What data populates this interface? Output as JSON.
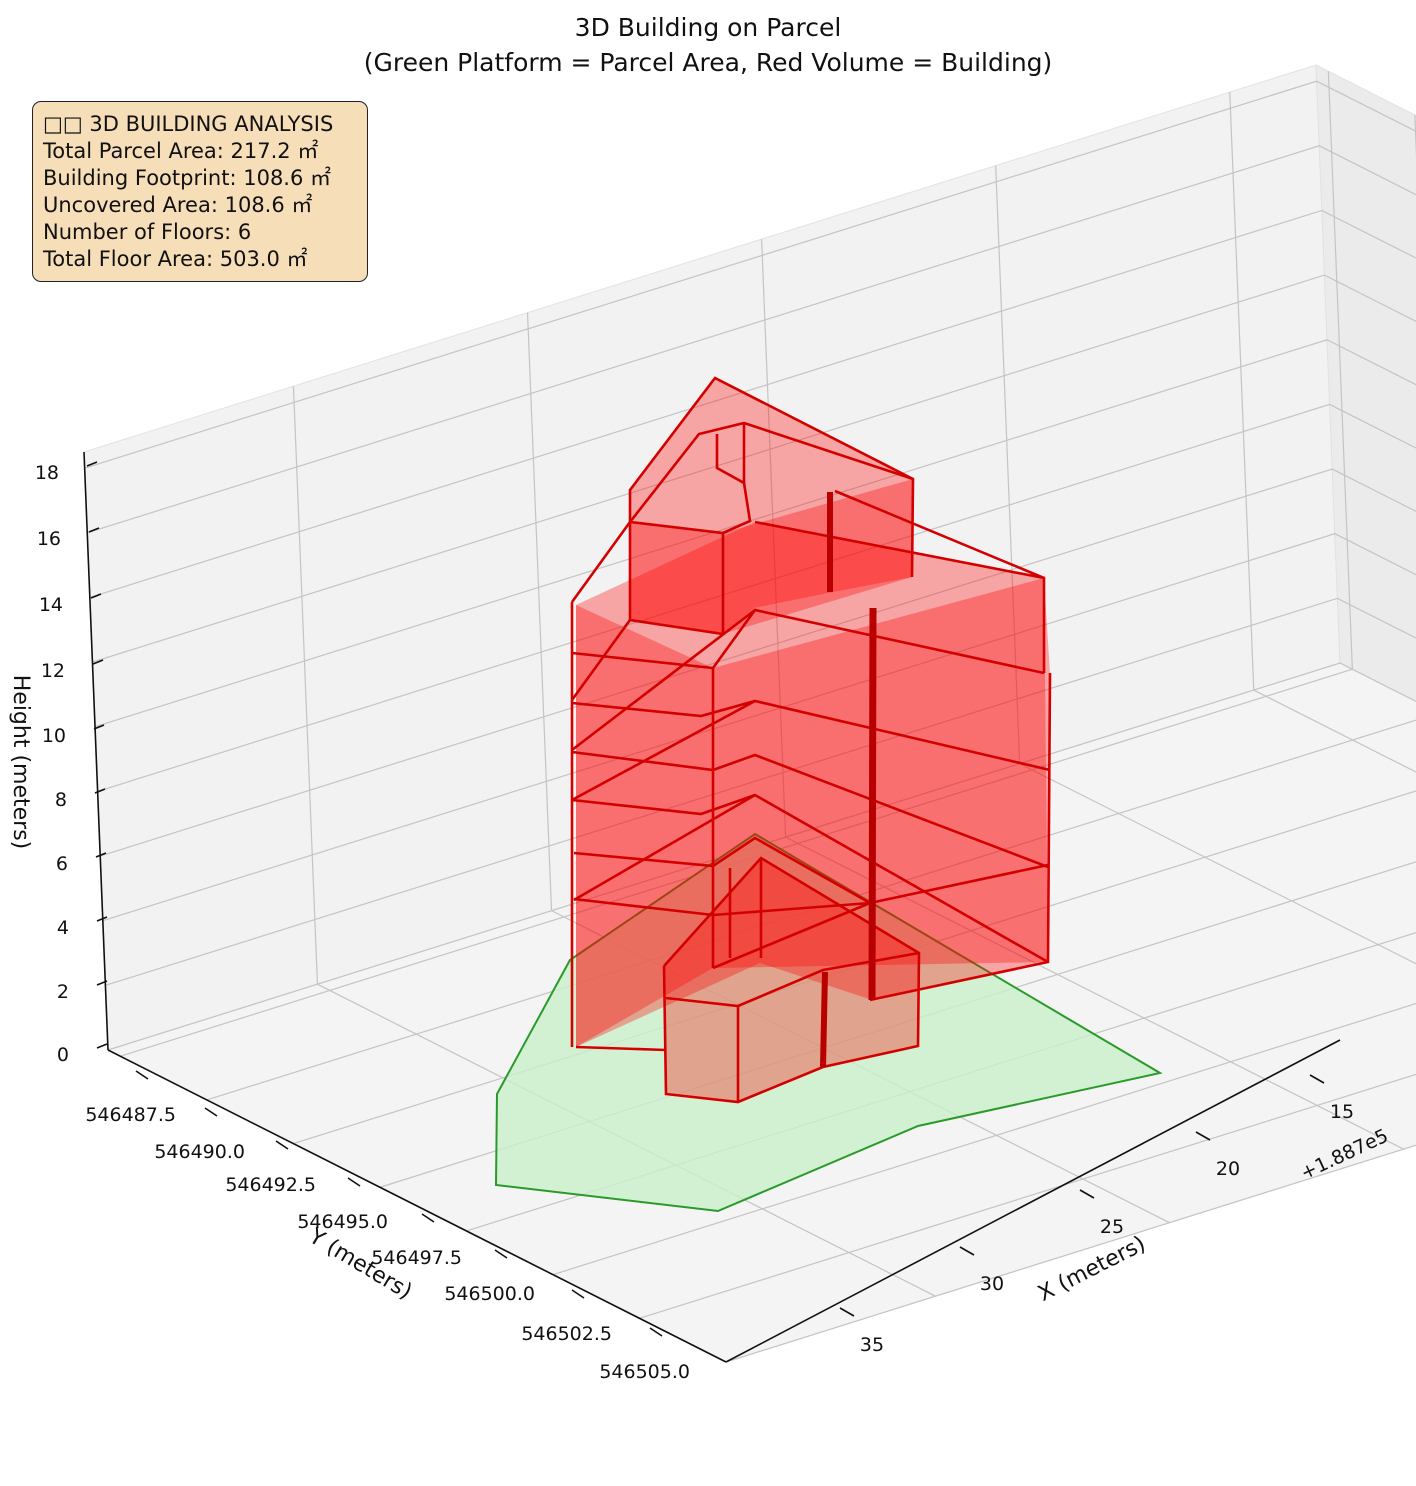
{
  "chart_data": {
    "type": "3d-polygons",
    "title": "3D Building on Parcel",
    "subtitle": "(Green Platform = Parcel Area, Red Volume = Building)",
    "xlabel": "X (meters)",
    "ylabel": "Y (meters)",
    "zlabel": "Height (meters)",
    "x_offset_label": "+1.887e5",
    "x_ticks": [
      "15",
      "20",
      "25",
      "30",
      "35"
    ],
    "y_ticks": [
      "546487.5",
      "546490.0",
      "546492.5",
      "546495.0",
      "546497.5",
      "546500.0",
      "546502.5",
      "546505.0"
    ],
    "z_ticks": [
      "0",
      "2",
      "4",
      "6",
      "8",
      "10",
      "12",
      "14",
      "16",
      "18"
    ],
    "zlim": [
      0,
      18.5
    ],
    "grid": true,
    "series": [
      {
        "name": "Parcel Area",
        "shape": "platform",
        "z": 0,
        "color": "#b8eab8",
        "edge": "#2ca02c"
      },
      {
        "name": "Building",
        "shape": "extruded volume",
        "floors": 6,
        "color": "#ff0000",
        "edge": "#cc0000"
      }
    ]
  },
  "info_box": {
    "title": "□□ 3D BUILDING ANALYSIS",
    "parcel_area": "Total Parcel Area: 217.2 ㎡",
    "footprint": "Building Footprint: 108.6 ㎡",
    "uncovered": "Uncovered Area: 108.6 ㎡",
    "floors": "Number of Floors: 6",
    "floor_area": "Total Floor Area: 503.0 ㎡"
  },
  "colors": {
    "pane_back": "#f2f2f2",
    "pane_side": "#ebebeb",
    "pane_floor": "#f4f4f4",
    "grid": "#c4c4c4",
    "building_fill": "#ff0000",
    "building_edge": "#d40000",
    "parcel_fill": "#c9efc9",
    "parcel_edge": "#2a9a2a",
    "info_bg": "#f6deb9"
  }
}
